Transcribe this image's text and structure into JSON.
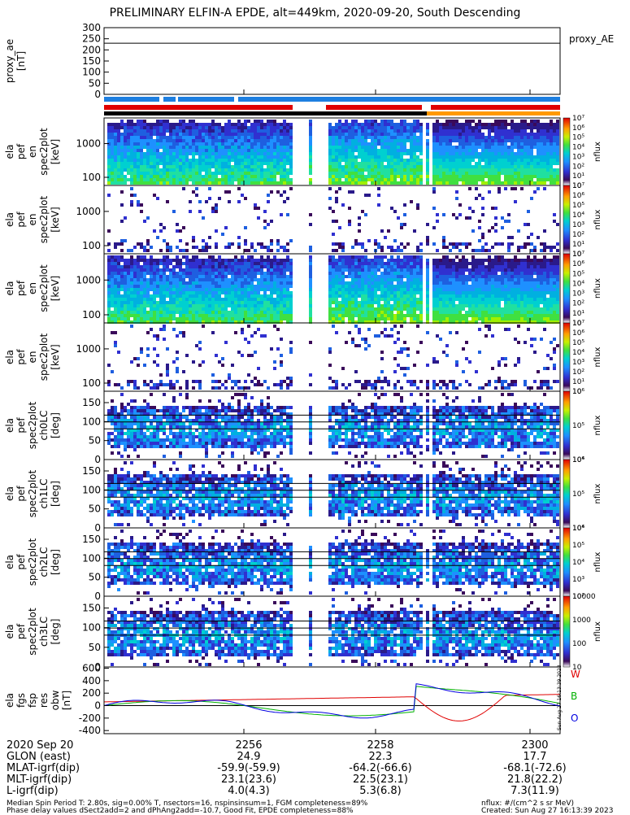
{
  "title": "PRELIMINARY ELFIN-A EPDE, alt=449km, 2020-09-20, South Descending",
  "chart_data": {
    "type": "heatmap",
    "x_ticks": [
      "2256",
      "2258",
      "2300"
    ],
    "panels": [
      {
        "id": "proxy_ae",
        "kind": "line",
        "ylabel": [
          "proxy_ae",
          "[nT]"
        ],
        "yticks": [
          "0",
          "50",
          "100",
          "150",
          "200",
          "250",
          "300"
        ],
        "ylim": [
          0,
          300
        ],
        "legend": "proxy_AE"
      },
      {
        "id": "en_spec_pef",
        "kind": "spectrogram",
        "ylabel": [
          "ela",
          "pef",
          "en",
          "spec2plot",
          "[keV]"
        ],
        "yticks": [
          "100",
          "1000"
        ],
        "yscale": "log",
        "colorbar": {
          "ticks": [
            "10",
            "10¹",
            "10²",
            "10³",
            "10⁴",
            "10⁵",
            "10⁶",
            "10⁷"
          ],
          "label": "nflux"
        }
      },
      {
        "id": "en_spec_pef_lc",
        "kind": "spectrogram",
        "ylabel": [
          "ela",
          "pef",
          "en",
          "spec2plot",
          "[keV]"
        ],
        "yticks": [
          "100",
          "1000"
        ],
        "yscale": "log",
        "colorbar": {
          "ticks": [
            "10",
            "10¹",
            "10²",
            "10³",
            "10⁴",
            "10⁵",
            "10⁶",
            "10⁷"
          ],
          "label": "nflux"
        }
      },
      {
        "id": "en_spec_pef_ant",
        "kind": "spectrogram",
        "ylabel": [
          "ela",
          "pef",
          "en",
          "spec2plot",
          "[keV]"
        ],
        "yticks": [
          "100",
          "1000"
        ],
        "yscale": "log",
        "colorbar": {
          "ticks": [
            "10",
            "10¹",
            "10²",
            "10³",
            "10⁴",
            "10⁵",
            "10⁶",
            "10⁷"
          ],
          "label": "nflux"
        }
      },
      {
        "id": "en_spec_pef_ratio",
        "kind": "spectrogram",
        "ylabel": [
          "ela",
          "pef",
          "en",
          "spec2plot",
          "[keV]"
        ],
        "yticks": [
          "100",
          "1000"
        ],
        "yscale": "log",
        "colorbar": {
          "ticks": [
            "10",
            "10¹",
            "10²",
            "10³",
            "10⁴",
            "10⁵",
            "10⁶",
            "10⁷"
          ],
          "label": "nflux"
        }
      },
      {
        "id": "pa_ch0",
        "kind": "spectrogram",
        "ylabel": [
          "ela",
          "pef",
          "spec2plot",
          "ch0LC",
          "[deg]"
        ],
        "yticks": [
          "0",
          "50",
          "100",
          "150"
        ],
        "ylim": [
          0,
          180
        ],
        "colorbar": {
          "ticks": [
            "10⁴",
            "10⁵",
            "10⁶"
          ],
          "label": "nflux"
        }
      },
      {
        "id": "pa_ch1",
        "kind": "spectrogram",
        "ylabel": [
          "ela",
          "pef",
          "spec2plot",
          "ch1LC",
          "[deg]"
        ],
        "yticks": [
          "0",
          "50",
          "100",
          "150"
        ],
        "ylim": [
          0,
          180
        ],
        "colorbar": {
          "ticks": [
            "10⁴",
            "10⁵",
            "10⁶"
          ],
          "label": "nflux"
        }
      },
      {
        "id": "pa_ch2",
        "kind": "spectrogram",
        "ylabel": [
          "ela",
          "pef",
          "spec2plot",
          "ch2LC",
          "[deg]"
        ],
        "yticks": [
          "0",
          "50",
          "100",
          "150"
        ],
        "ylim": [
          0,
          180
        ],
        "colorbar": {
          "ticks": [
            "10²",
            "10³",
            "10⁴",
            "10⁵",
            "10⁶"
          ],
          "label": "nflux"
        }
      },
      {
        "id": "pa_ch3",
        "kind": "spectrogram",
        "ylabel": [
          "ela",
          "pef",
          "spec2plot",
          "ch3LC",
          "[deg]"
        ],
        "yticks": [
          "0",
          "50",
          "100",
          "150"
        ],
        "ylim": [
          0,
          180
        ],
        "colorbar": {
          "ticks": [
            "10",
            "100",
            "1000",
            "10000"
          ],
          "label": "nflux"
        }
      },
      {
        "id": "fgs_res",
        "kind": "line",
        "ylabel": [
          "ela",
          "fgs",
          "fsp",
          "res",
          "obw",
          "[nT]"
        ],
        "yticks": [
          "-400",
          "-200",
          "0",
          "200",
          "400",
          "600"
        ],
        "ylim": [
          -450,
          620
        ],
        "legend": [
          "W",
          "B",
          "O"
        ],
        "legend_colors": [
          "#e00000",
          "#00b000",
          "#0000e0"
        ]
      }
    ]
  },
  "footer": {
    "row_labels": [
      "2020 Sep 20",
      "GLON (east)",
      "MLAT-igrf(dip)",
      "MLT-igrf(dip)",
      "L-igrf(dip)"
    ],
    "times": [
      "2256",
      "2258",
      "2300"
    ],
    "glon": [
      "24.9",
      "22.3",
      "17.7"
    ],
    "mlat": [
      "-59.9(-59.9)",
      "-64.2(-66.6)",
      "-68.1(-72.6)"
    ],
    "mlt": [
      "23.1(23.6)",
      "22.5(23.1)",
      "21.8(22.2)"
    ],
    "lval": [
      "4.0(4.3)",
      "5.3(6.8)",
      "7.3(11.9)"
    ],
    "note1": "Median Spin Period T: 2.80s, sig=0.00% T, nsectors=16, nspinsinsum=1, FGM completeness=89%",
    "note2": "Phase delay values dSect2add=2 and dPhAng2add=-10.7, Good Fit, EPDE completeness=88%",
    "units": "nflux: #/(cm^2 s sr MeV)",
    "created": "Created: Sun Aug 27 16:13:39 2023"
  },
  "side_stamp": "Sun Aug 27 16:13:39 2023",
  "colors": {
    "red": "#e00000",
    "green": "#00b000",
    "blue": "#0000e0",
    "bar_blue": "#1e7fe0",
    "orange": "#ff9900"
  }
}
